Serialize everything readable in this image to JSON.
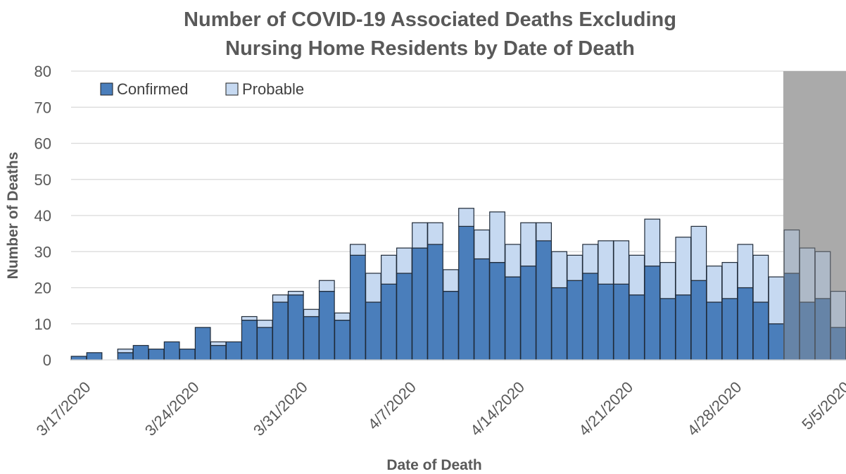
{
  "chart_data": {
    "type": "bar",
    "stacked": true,
    "title": [
      "Number of COVID-19 Associated Deaths Excluding",
      "Nursing Home Residents by Date of Death"
    ],
    "xlabel": "Date of Death",
    "ylabel": "Number of Deaths",
    "ylim": [
      0,
      80
    ],
    "yticks": [
      0,
      10,
      20,
      30,
      40,
      50,
      60,
      70,
      80
    ],
    "grid": true,
    "legend_position": "top-left",
    "start_date": "3/17/2020",
    "xtick_labels": [
      "3/17/2020",
      "3/24/2020",
      "3/31/2020",
      "4/7/2020",
      "4/14/2020",
      "4/21/2020",
      "4/28/2020",
      "5/5/2020"
    ],
    "categories": [
      "3/17/2020",
      "3/18/2020",
      "3/19/2020",
      "3/20/2020",
      "3/21/2020",
      "3/22/2020",
      "3/23/2020",
      "3/24/2020",
      "3/25/2020",
      "3/26/2020",
      "3/27/2020",
      "3/28/2020",
      "3/29/2020",
      "3/30/2020",
      "3/31/2020",
      "4/1/2020",
      "4/2/2020",
      "4/3/2020",
      "4/4/2020",
      "4/5/2020",
      "4/6/2020",
      "4/7/2020",
      "4/8/2020",
      "4/9/2020",
      "4/10/2020",
      "4/11/2020",
      "4/12/2020",
      "4/13/2020",
      "4/14/2020",
      "4/15/2020",
      "4/16/2020",
      "4/17/2020",
      "4/18/2020",
      "4/19/2020",
      "4/20/2020",
      "4/21/2020",
      "4/22/2020",
      "4/23/2020",
      "4/24/2020",
      "4/25/2020",
      "4/26/2020",
      "4/27/2020",
      "4/28/2020",
      "4/29/2020",
      "4/30/2020",
      "5/1/2020",
      "5/2/2020",
      "5/3/2020",
      "5/4/2020",
      "5/5/2020"
    ],
    "series": [
      {
        "name": "Confirmed",
        "color": "#4a7ebb",
        "values": [
          1,
          2,
          0,
          2,
          4,
          3,
          5,
          3,
          9,
          4,
          5,
          11,
          9,
          16,
          18,
          12,
          19,
          11,
          29,
          16,
          21,
          24,
          31,
          32,
          19,
          37,
          28,
          27,
          23,
          26,
          33,
          20,
          22,
          24,
          21,
          21,
          18,
          26,
          17,
          18,
          22,
          16,
          17,
          20,
          16,
          10,
          24,
          16,
          17,
          9
        ]
      },
      {
        "name": "Probable",
        "color": "#c6d9f1",
        "values": [
          0,
          0,
          0,
          1,
          0,
          0,
          0,
          0,
          0,
          1,
          0,
          1,
          2,
          2,
          1,
          2,
          3,
          2,
          3,
          8,
          8,
          7,
          7,
          6,
          6,
          5,
          8,
          14,
          9,
          12,
          5,
          10,
          7,
          8,
          12,
          12,
          11,
          13,
          10,
          16,
          15,
          10,
          10,
          12,
          13,
          13,
          12,
          15,
          13,
          10
        ]
      }
    ],
    "shaded_region": {
      "from": "5/2/2020",
      "to": "5/5/2020",
      "color": "#bfbfbf"
    }
  }
}
